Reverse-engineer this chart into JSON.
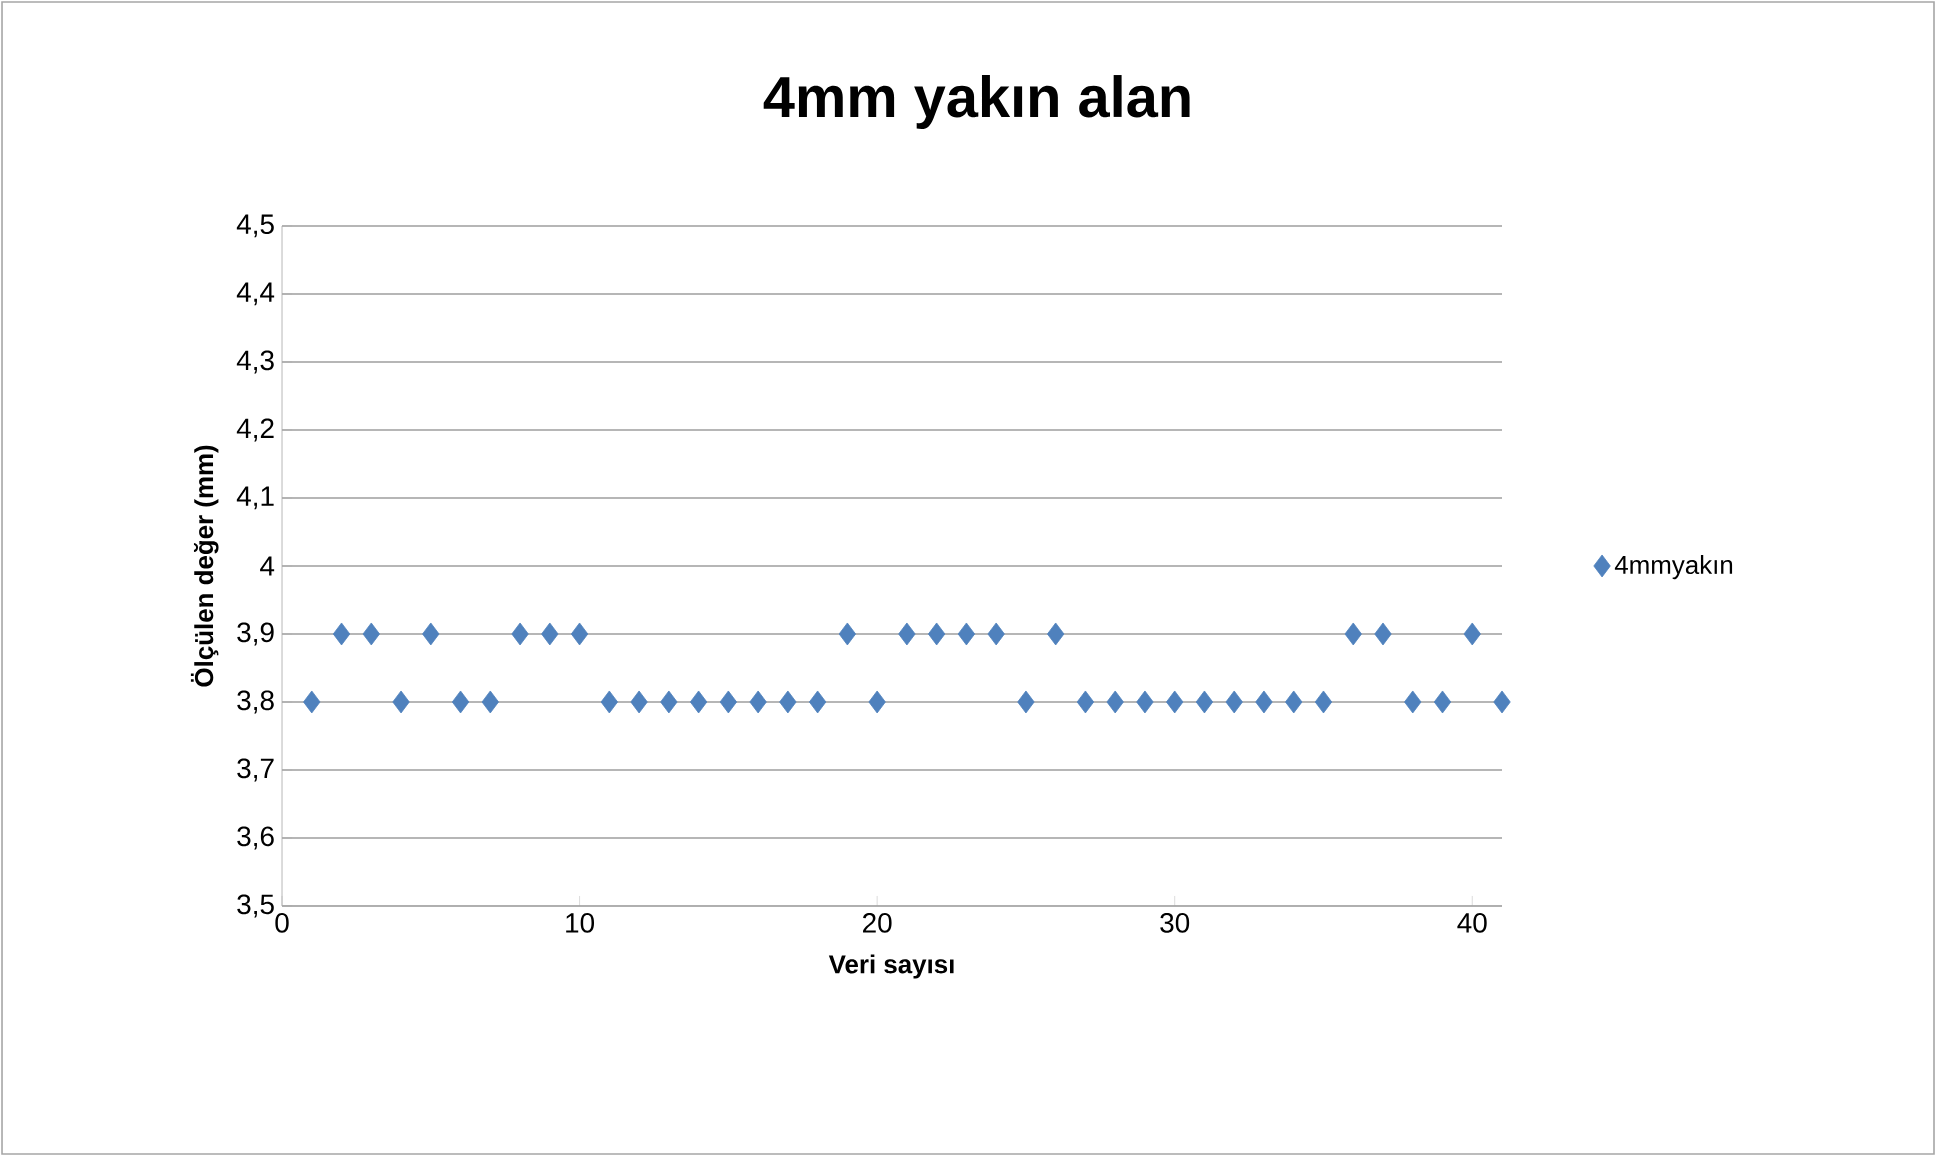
{
  "chart_data": {
    "type": "scatter",
    "title": "4mm yakın alan",
    "xlabel": "Veri sayısı",
    "ylabel": "Ölçülen değer (mm)",
    "x": [
      1,
      2,
      3,
      4,
      5,
      6,
      7,
      8,
      9,
      10,
      11,
      12,
      13,
      14,
      15,
      16,
      17,
      18,
      19,
      20,
      21,
      22,
      23,
      24,
      25,
      26,
      27,
      28,
      29,
      30,
      31,
      32,
      33,
      34,
      35,
      36,
      37,
      38,
      39,
      40,
      41
    ],
    "series": [
      {
        "name": "4mmyakın",
        "color": "#4f81bd",
        "values": [
          3.8,
          3.9,
          3.9,
          3.8,
          3.9,
          3.8,
          3.8,
          3.9,
          3.9,
          3.9,
          3.8,
          3.8,
          3.8,
          3.8,
          3.8,
          3.8,
          3.8,
          3.8,
          3.9,
          3.8,
          3.9,
          3.9,
          3.9,
          3.9,
          3.8,
          3.9,
          3.8,
          3.8,
          3.8,
          3.8,
          3.8,
          3.8,
          3.8,
          3.8,
          3.8,
          3.9,
          3.9,
          3.8,
          3.8,
          3.9,
          3.8
        ]
      }
    ],
    "xlim": [
      0,
      41
    ],
    "xticks": [
      0,
      10,
      20,
      30,
      40
    ],
    "ylim": [
      3.5,
      4.5
    ],
    "yticks": [
      {
        "value": 3.5,
        "label": "3,5"
      },
      {
        "value": 3.6,
        "label": "3,6"
      },
      {
        "value": 3.7,
        "label": "3,7"
      },
      {
        "value": 3.8,
        "label": "3,8"
      },
      {
        "value": 3.9,
        "label": "3,9"
      },
      4,
      {
        "value": 4.1,
        "label": "4,1"
      },
      {
        "value": 4.2,
        "label": "4,2"
      },
      {
        "value": 4.3,
        "label": "4,3"
      },
      {
        "value": 4.4,
        "label": "4,4"
      },
      {
        "value": 4.5,
        "label": "4,5"
      }
    ],
    "grid": "y",
    "legend": "right",
    "marker": "diamond"
  }
}
